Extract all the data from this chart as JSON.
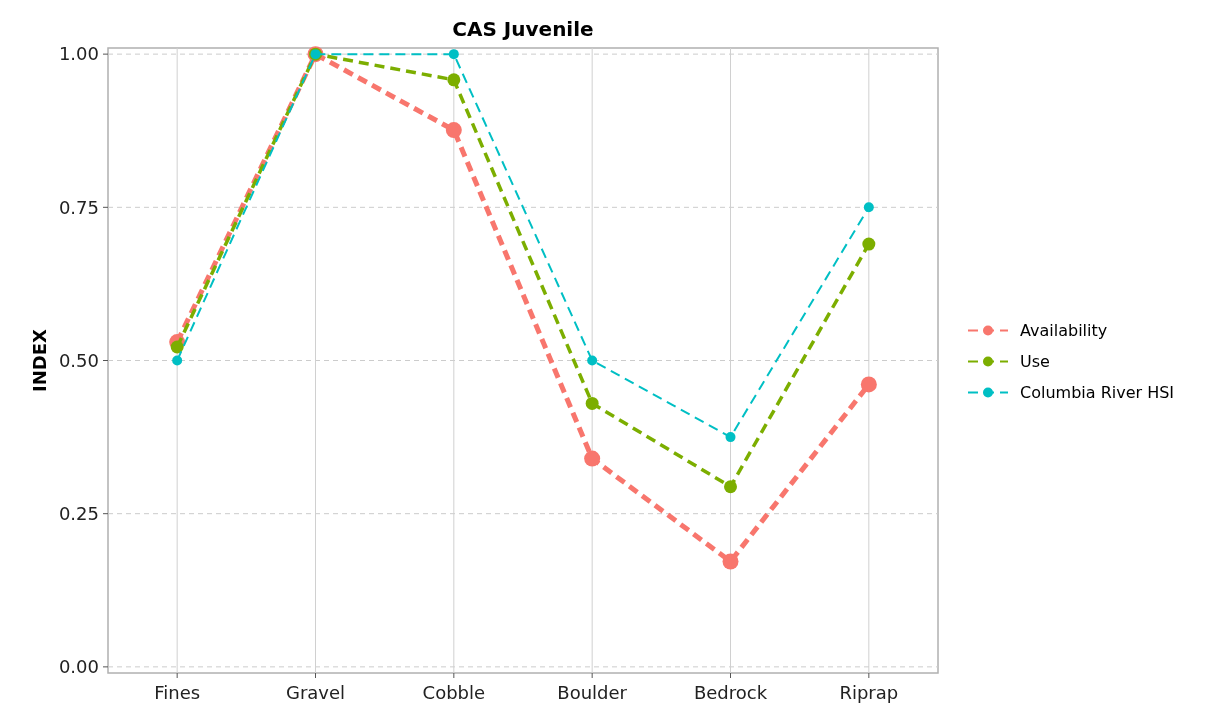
{
  "chart_data": {
    "type": "line",
    "title": "CAS Juvenile",
    "ylabel": "INDEX",
    "categories": [
      "Fines",
      "Gravel",
      "Cobble",
      "Boulder",
      "Bedrock",
      "Riprap"
    ],
    "series": [
      {
        "name": "Availability",
        "color": "#f8766d",
        "values": [
          0.53,
          1.0,
          0.876,
          0.34,
          0.172,
          0.461
        ]
      },
      {
        "name": "Use",
        "color": "#7cae00",
        "values": [
          0.522,
          1.0,
          0.958,
          0.43,
          0.294,
          0.69
        ]
      },
      {
        "name": "Columbia River HSI",
        "color": "#00bfc4",
        "values": [
          0.5,
          1.0,
          1.0,
          0.5,
          0.375,
          0.75
        ]
      }
    ],
    "ylim": [
      -0.01,
      1.01
    ],
    "yticks": [
      {
        "value": 0,
        "label": "0.00"
      },
      {
        "value": 0.25,
        "label": "0.25"
      },
      {
        "value": 0.5,
        "label": "0.50"
      },
      {
        "value": 0.75,
        "label": "0.75"
      },
      {
        "value": 1,
        "label": "1.00"
      }
    ],
    "grid": true,
    "legend": "right",
    "marker": "circle",
    "line_style": "dashed"
  }
}
